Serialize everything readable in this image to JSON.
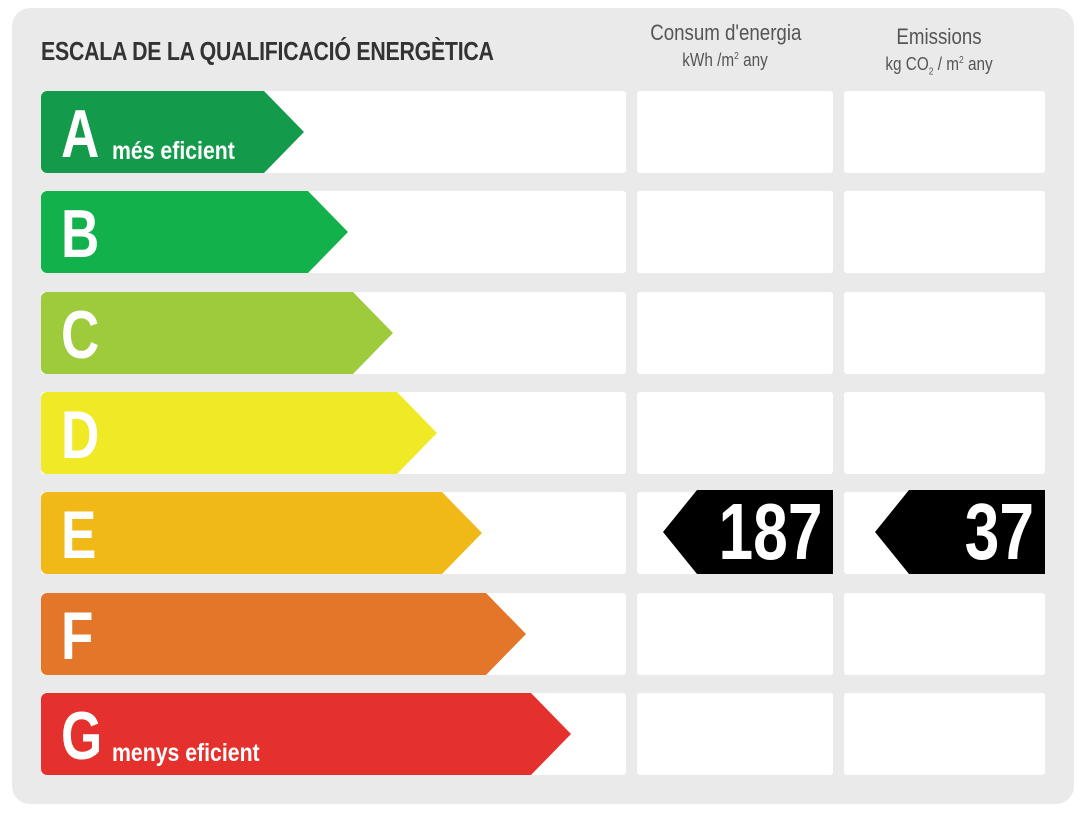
{
  "title": "ESCALA DE LA QUALIFICACIÓ ENERGÈTICA",
  "columns": {
    "consum": {
      "label": "Consum d'energia",
      "unit_pre": "kWh /m",
      "unit_sup": "2",
      "unit_post": " any"
    },
    "emissions": {
      "label": "Emissions",
      "unit_pre": "kg CO",
      "unit_sub": "2",
      "unit_mid": "  / m",
      "unit_sup": "2",
      "unit_post": " any"
    }
  },
  "ratings": [
    {
      "letter": "A",
      "label": "més eficient",
      "color": "#139a4a"
    },
    {
      "letter": "B",
      "label": "",
      "color": "#12b14b"
    },
    {
      "letter": "C",
      "label": "",
      "color": "#9dcb3c"
    },
    {
      "letter": "D",
      "label": "",
      "color": "#efe926"
    },
    {
      "letter": "E",
      "label": "",
      "color": "#f1b918"
    },
    {
      "letter": "F",
      "label": "",
      "color": "#e4762a"
    },
    {
      "letter": "G",
      "label": "menys eficient",
      "color": "#e4312d"
    }
  ],
  "current": {
    "rating": "E",
    "consum": "187",
    "emissions": "37",
    "marker_color": "#000000"
  }
}
